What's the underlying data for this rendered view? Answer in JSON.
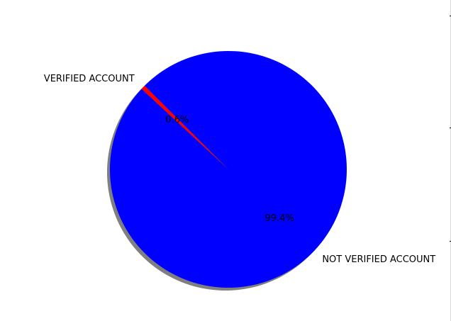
{
  "chart_data": {
    "type": "pie",
    "title": "",
    "categories": [
      "VERIFIED ACCOUNT",
      "NOT VERIFIED ACCOUNT"
    ],
    "values": [
      0.6,
      99.4
    ],
    "percent_labels": [
      "0.6%",
      "99.4%"
    ],
    "colors": [
      "#ff0000",
      "#0000ff"
    ],
    "shadow": true,
    "start_angle_deg": 135,
    "legend": "none"
  }
}
